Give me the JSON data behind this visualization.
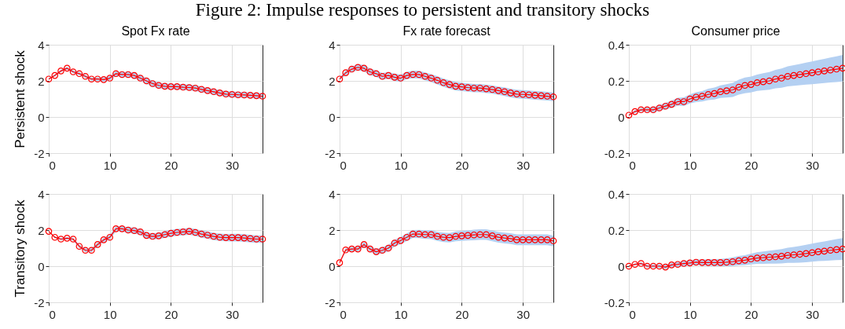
{
  "chart_data": [
    {
      "type": "line",
      "title": "Spot Fx rate",
      "ylabel": "Persistent shock",
      "annotations": [
        "Figure 2: Impulse responses to persistent and transitory shocks"
      ],
      "x": [
        0,
        1,
        2,
        3,
        4,
        5,
        6,
        7,
        8,
        9,
        10,
        11,
        12,
        13,
        14,
        15,
        16,
        17,
        18,
        19,
        20,
        21,
        22,
        23,
        24,
        25,
        26,
        27,
        28,
        29,
        30,
        31,
        32,
        33,
        34,
        35
      ],
      "xlim": [
        0,
        35
      ],
      "xticks": [
        0,
        10,
        20,
        30
      ],
      "ylim": [
        -2,
        4
      ],
      "yticks": [
        -2,
        0,
        2,
        4
      ],
      "grid": true,
      "marker": "circle",
      "series": [
        {
          "color": "#ff0000",
          "values": [
            2.1,
            2.3,
            2.55,
            2.7,
            2.5,
            2.4,
            2.25,
            2.1,
            2.1,
            2.07,
            2.15,
            2.4,
            2.35,
            2.35,
            2.3,
            2.15,
            2.0,
            1.85,
            1.75,
            1.7,
            1.68,
            1.68,
            1.65,
            1.63,
            1.6,
            1.53,
            1.46,
            1.4,
            1.33,
            1.27,
            1.25,
            1.23,
            1.22,
            1.2,
            1.18,
            1.15
          ],
          "lower": [
            2.05,
            2.24,
            2.48,
            2.62,
            2.42,
            2.31,
            2.16,
            2.01,
            2.0,
            1.96,
            2.03,
            2.27,
            2.21,
            2.2,
            2.14,
            1.99,
            1.84,
            1.69,
            1.59,
            1.54,
            1.52,
            1.52,
            1.49,
            1.47,
            1.44,
            1.37,
            1.3,
            1.24,
            1.17,
            1.11,
            1.09,
            1.07,
            1.06,
            1.04,
            1.02,
            0.99
          ],
          "upper": [
            2.15,
            2.36,
            2.62,
            2.78,
            2.58,
            2.49,
            2.34,
            2.19,
            2.2,
            2.18,
            2.27,
            2.53,
            2.49,
            2.5,
            2.46,
            2.31,
            2.16,
            2.01,
            1.91,
            1.86,
            1.84,
            1.84,
            1.81,
            1.79,
            1.76,
            1.69,
            1.62,
            1.56,
            1.49,
            1.43,
            1.41,
            1.39,
            1.38,
            1.36,
            1.34,
            1.31
          ]
        }
      ]
    },
    {
      "type": "line",
      "title": "Fx rate forecast",
      "x": [
        0,
        1,
        2,
        3,
        4,
        5,
        6,
        7,
        8,
        9,
        10,
        11,
        12,
        13,
        14,
        15,
        16,
        17,
        18,
        19,
        20,
        21,
        22,
        23,
        24,
        25,
        26,
        27,
        28,
        29,
        30,
        31,
        32,
        33,
        34,
        35
      ],
      "xlim": [
        0,
        35
      ],
      "xticks": [
        0,
        10,
        20,
        30
      ],
      "ylim": [
        -2,
        4
      ],
      "yticks": [
        -2,
        0,
        2,
        4
      ],
      "grid": true,
      "marker": "circle",
      "series": [
        {
          "color": "#ff0000",
          "values": [
            2.1,
            2.45,
            2.65,
            2.75,
            2.7,
            2.5,
            2.4,
            2.25,
            2.3,
            2.2,
            2.15,
            2.3,
            2.35,
            2.35,
            2.25,
            2.15,
            2.03,
            1.9,
            1.8,
            1.7,
            1.67,
            1.63,
            1.6,
            1.6,
            1.56,
            1.52,
            1.46,
            1.4,
            1.33,
            1.27,
            1.25,
            1.23,
            1.2,
            1.18,
            1.15,
            1.12
          ],
          "lower": [
            2.02,
            2.32,
            2.5,
            2.58,
            2.52,
            2.32,
            2.22,
            2.07,
            2.11,
            2.0,
            1.95,
            2.1,
            2.14,
            2.13,
            2.03,
            1.93,
            1.8,
            1.67,
            1.57,
            1.47,
            1.44,
            1.4,
            1.37,
            1.37,
            1.33,
            1.29,
            1.23,
            1.16,
            1.09,
            1.03,
            1.01,
            0.99,
            0.96,
            0.94,
            0.91,
            0.88
          ],
          "upper": [
            2.18,
            2.58,
            2.8,
            2.92,
            2.88,
            2.68,
            2.58,
            2.43,
            2.49,
            2.4,
            2.35,
            2.5,
            2.56,
            2.57,
            2.47,
            2.37,
            2.26,
            2.13,
            2.03,
            1.93,
            1.9,
            1.86,
            1.83,
            1.83,
            1.79,
            1.75,
            1.69,
            1.64,
            1.57,
            1.51,
            1.49,
            1.47,
            1.44,
            1.42,
            1.39,
            1.36
          ]
        }
      ]
    },
    {
      "type": "line",
      "title": "Consumer price",
      "x": [
        0,
        1,
        2,
        3,
        4,
        5,
        6,
        7,
        8,
        9,
        10,
        11,
        12,
        13,
        14,
        15,
        16,
        17,
        18,
        19,
        20,
        21,
        22,
        23,
        24,
        25,
        26,
        27,
        28,
        29,
        30,
        31,
        32,
        33,
        34,
        35
      ],
      "xlim": [
        0,
        35
      ],
      "xticks": [
        0,
        10,
        20,
        30
      ],
      "ylim": [
        -0.2,
        0.4
      ],
      "yticks": [
        -0.2,
        0,
        0.2,
        0.4
      ],
      "grid": true,
      "marker": "circle",
      "series": [
        {
          "color": "#ff0000",
          "values": [
            0.01,
            0.03,
            0.04,
            0.04,
            0.04,
            0.05,
            0.06,
            0.07,
            0.085,
            0.085,
            0.1,
            0.11,
            0.115,
            0.125,
            0.13,
            0.14,
            0.145,
            0.15,
            0.165,
            0.175,
            0.18,
            0.19,
            0.195,
            0.2,
            0.21,
            0.215,
            0.225,
            0.23,
            0.235,
            0.24,
            0.245,
            0.25,
            0.255,
            0.26,
            0.265,
            0.27
          ],
          "lower": [
            0.005,
            0.022,
            0.03,
            0.028,
            0.026,
            0.034,
            0.042,
            0.05,
            0.063,
            0.061,
            0.075,
            0.083,
            0.086,
            0.094,
            0.097,
            0.105,
            0.108,
            0.111,
            0.124,
            0.132,
            0.136,
            0.145,
            0.148,
            0.151,
            0.159,
            0.162,
            0.17,
            0.173,
            0.176,
            0.179,
            0.182,
            0.185,
            0.188,
            0.191,
            0.194,
            0.197
          ],
          "upper": [
            0.015,
            0.038,
            0.05,
            0.052,
            0.054,
            0.066,
            0.078,
            0.09,
            0.107,
            0.109,
            0.125,
            0.137,
            0.144,
            0.156,
            0.163,
            0.175,
            0.182,
            0.189,
            0.206,
            0.218,
            0.224,
            0.235,
            0.242,
            0.249,
            0.261,
            0.268,
            0.28,
            0.287,
            0.294,
            0.301,
            0.308,
            0.315,
            0.322,
            0.329,
            0.336,
            0.343
          ]
        }
      ]
    },
    {
      "type": "line",
      "ylabel": "Transitory shock",
      "x": [
        0,
        1,
        2,
        3,
        4,
        5,
        6,
        7,
        8,
        9,
        10,
        11,
        12,
        13,
        14,
        15,
        16,
        17,
        18,
        19,
        20,
        21,
        22,
        23,
        24,
        25,
        26,
        27,
        28,
        29,
        30,
        31,
        32,
        33,
        34,
        35
      ],
      "xlim": [
        0,
        35
      ],
      "xticks": [
        0,
        10,
        20,
        30
      ],
      "ylim": [
        -2,
        4
      ],
      "yticks": [
        -2,
        0,
        2,
        4
      ],
      "grid": true,
      "marker": "circle",
      "series": [
        {
          "color": "#ff0000",
          "values": [
            1.93,
            1.6,
            1.5,
            1.55,
            1.5,
            1.1,
            0.88,
            0.88,
            1.2,
            1.46,
            1.6,
            2.07,
            2.07,
            2.0,
            1.97,
            1.9,
            1.7,
            1.65,
            1.68,
            1.75,
            1.82,
            1.87,
            1.9,
            1.93,
            1.87,
            1.78,
            1.72,
            1.65,
            1.6,
            1.58,
            1.58,
            1.58,
            1.56,
            1.53,
            1.5,
            1.5
          ],
          "lower": [
            1.9,
            1.55,
            1.44,
            1.48,
            1.42,
            1.01,
            0.78,
            0.77,
            1.09,
            1.34,
            1.47,
            1.93,
            1.92,
            1.84,
            1.8,
            1.73,
            1.53,
            1.48,
            1.5,
            1.57,
            1.63,
            1.68,
            1.71,
            1.74,
            1.67,
            1.58,
            1.52,
            1.45,
            1.4,
            1.38,
            1.37,
            1.37,
            1.35,
            1.32,
            1.29,
            1.29
          ],
          "upper": [
            1.96,
            1.65,
            1.56,
            1.62,
            1.58,
            1.19,
            0.98,
            0.99,
            1.31,
            1.58,
            1.73,
            2.21,
            2.22,
            2.16,
            2.14,
            2.07,
            1.87,
            1.82,
            1.86,
            1.93,
            2.01,
            2.06,
            2.09,
            2.12,
            2.07,
            1.98,
            1.92,
            1.85,
            1.8,
            1.78,
            1.79,
            1.79,
            1.77,
            1.74,
            1.71,
            1.71
          ]
        }
      ]
    },
    {
      "type": "line",
      "x": [
        0,
        1,
        2,
        3,
        4,
        5,
        6,
        7,
        8,
        9,
        10,
        11,
        12,
        13,
        14,
        15,
        16,
        17,
        18,
        19,
        20,
        21,
        22,
        23,
        24,
        25,
        26,
        27,
        28,
        29,
        30,
        31,
        32,
        33,
        34,
        35
      ],
      "xlim": [
        0,
        35
      ],
      "xticks": [
        0,
        10,
        20,
        30
      ],
      "ylim": [
        -2,
        4
      ],
      "yticks": [
        -2,
        0,
        2,
        4
      ],
      "grid": true,
      "marker": "circle",
      "series": [
        {
          "color": "#ff0000",
          "values": [
            0.19,
            0.9,
            0.95,
            0.95,
            1.2,
            0.95,
            0.8,
            0.88,
            1.0,
            1.28,
            1.42,
            1.6,
            1.78,
            1.78,
            1.75,
            1.75,
            1.65,
            1.6,
            1.58,
            1.65,
            1.68,
            1.7,
            1.73,
            1.75,
            1.75,
            1.68,
            1.6,
            1.56,
            1.53,
            1.46,
            1.46,
            1.46,
            1.46,
            1.46,
            1.46,
            1.4
          ],
          "lower": [
            0.15,
            0.8,
            0.83,
            0.82,
            1.06,
            0.8,
            0.64,
            0.71,
            0.82,
            1.09,
            1.22,
            1.39,
            1.56,
            1.55,
            1.51,
            1.5,
            1.4,
            1.34,
            1.32,
            1.38,
            1.4,
            1.42,
            1.44,
            1.46,
            1.46,
            1.38,
            1.3,
            1.26,
            1.23,
            1.16,
            1.16,
            1.16,
            1.16,
            1.16,
            1.16,
            1.1
          ],
          "upper": [
            0.23,
            1.0,
            1.07,
            1.08,
            1.34,
            1.1,
            0.96,
            1.05,
            1.18,
            1.47,
            1.62,
            1.81,
            2.0,
            2.01,
            1.99,
            2.0,
            1.9,
            1.86,
            1.84,
            1.92,
            1.96,
            1.98,
            2.02,
            2.04,
            2.04,
            1.98,
            1.9,
            1.86,
            1.83,
            1.76,
            1.76,
            1.76,
            1.76,
            1.76,
            1.76,
            1.7
          ]
        }
      ]
    },
    {
      "type": "line",
      "x": [
        0,
        1,
        2,
        3,
        4,
        5,
        6,
        7,
        8,
        9,
        10,
        11,
        12,
        13,
        14,
        15,
        16,
        17,
        18,
        19,
        20,
        21,
        22,
        23,
        24,
        25,
        26,
        27,
        28,
        29,
        30,
        31,
        32,
        33,
        34,
        35
      ],
      "xlim": [
        0,
        35
      ],
      "xticks": [
        0,
        10,
        20,
        30
      ],
      "ylim": [
        -0.2,
        0.4
      ],
      "yticks": [
        -0.2,
        0,
        0.2,
        0.4
      ],
      "grid": true,
      "marker": "circle",
      "series": [
        {
          "color": "#ff0000",
          "values": [
            0,
            0.01,
            0.015,
            0,
            0,
            0,
            -0.005,
            0.007,
            0.01,
            0.015,
            0.018,
            0.022,
            0.02,
            0.02,
            0.02,
            0.02,
            0.022,
            0.025,
            0.03,
            0.033,
            0.04,
            0.045,
            0.047,
            0.05,
            0.052,
            0.055,
            0.06,
            0.063,
            0.066,
            0.07,
            0.075,
            0.08,
            0.083,
            0.088,
            0.092,
            0.095
          ],
          "lower": [
            -0.003,
            0.005,
            0.008,
            -0.008,
            -0.009,
            -0.01,
            -0.016,
            -0.005,
            -0.003,
            0.001,
            0.003,
            0.006,
            0.003,
            0.002,
            0.001,
            0.0,
            0.0,
            0.001,
            0.004,
            0.005,
            0.01,
            0.013,
            0.013,
            0.014,
            0.014,
            0.015,
            0.018,
            0.019,
            0.02,
            0.022,
            0.025,
            0.028,
            0.029,
            0.032,
            0.034,
            0.035
          ],
          "upper": [
            0.003,
            0.015,
            0.022,
            0.008,
            0.009,
            0.01,
            0.006,
            0.019,
            0.023,
            0.029,
            0.033,
            0.038,
            0.037,
            0.038,
            0.039,
            0.04,
            0.044,
            0.049,
            0.056,
            0.061,
            0.07,
            0.077,
            0.081,
            0.086,
            0.09,
            0.095,
            0.102,
            0.107,
            0.112,
            0.118,
            0.125,
            0.132,
            0.137,
            0.144,
            0.15,
            0.155
          ]
        }
      ]
    }
  ]
}
